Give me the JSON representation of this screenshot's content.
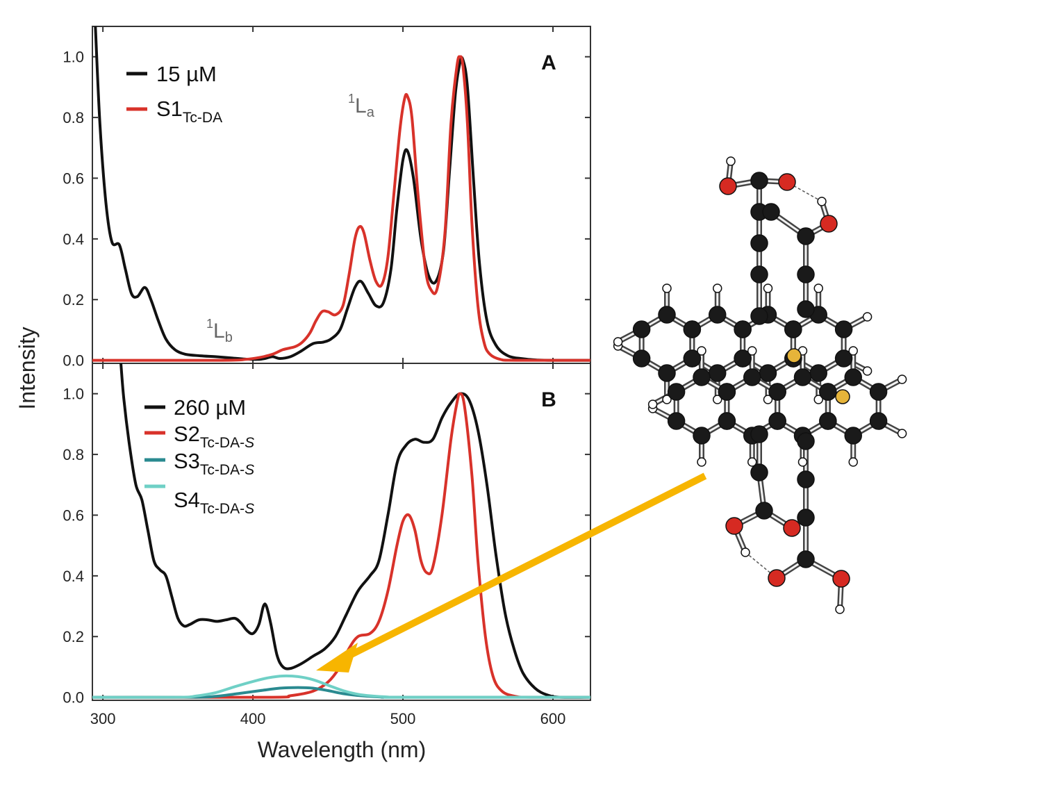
{
  "figure": {
    "ylabel": "Intensity",
    "xlabel": "Wavelength (nm)",
    "colors": {
      "black": "#111111",
      "red": "#d8322a",
      "teal_dark": "#2a8a90",
      "teal_light": "#6fd0c6",
      "arrow": "#f7b500",
      "oxygen": "#d62a22",
      "sulfur": "#e6b43a",
      "carbon": "#1a1a1a",
      "hydrogen": "#ffffff"
    }
  },
  "chart_data": [
    {
      "type": "line",
      "panel": "A",
      "xlim": [
        293,
        625
      ],
      "ylim": [
        -0.01,
        1.1
      ],
      "xticks": [
        300,
        400,
        500,
        600
      ],
      "yticks": [
        "0.0",
        "0.2",
        "0.4",
        "0.6",
        "0.8",
        "1.0"
      ],
      "annotations": [
        {
          "sup": "1",
          "main": "L",
          "sub": "b",
          "x": 383,
          "y": 0.09
        },
        {
          "sup": "1",
          "main": "L",
          "sub": "a",
          "x": 484,
          "y": 0.83
        }
      ],
      "series": [
        {
          "name": "15 µM",
          "color": "#111111",
          "points": [
            [
              295,
              1.1
            ],
            [
              298,
              0.78
            ],
            [
              302,
              0.52
            ],
            [
              306,
              0.39
            ],
            [
              311,
              0.38
            ],
            [
              315,
              0.3
            ],
            [
              319,
              0.22
            ],
            [
              323,
              0.21
            ],
            [
              328,
              0.24
            ],
            [
              332,
              0.2
            ],
            [
              337,
              0.13
            ],
            [
              342,
              0.07
            ],
            [
              348,
              0.035
            ],
            [
              355,
              0.02
            ],
            [
              365,
              0.015
            ],
            [
              375,
              0.012
            ],
            [
              385,
              0.008
            ],
            [
              395,
              0.004
            ],
            [
              403,
              0.003
            ],
            [
              408,
              0.006
            ],
            [
              413,
              0.012
            ],
            [
              418,
              0.006
            ],
            [
              425,
              0.012
            ],
            [
              432,
              0.03
            ],
            [
              440,
              0.055
            ],
            [
              447,
              0.06
            ],
            [
              452,
              0.07
            ],
            [
              458,
              0.1
            ],
            [
              463,
              0.17
            ],
            [
              468,
              0.24
            ],
            [
              472,
              0.26
            ],
            [
              477,
              0.22
            ],
            [
              482,
              0.18
            ],
            [
              487,
              0.19
            ],
            [
              492,
              0.3
            ],
            [
              496,
              0.5
            ],
            [
              500,
              0.66
            ],
            [
              503,
              0.69
            ],
            [
              507,
              0.6
            ],
            [
              512,
              0.4
            ],
            [
              517,
              0.28
            ],
            [
              522,
              0.26
            ],
            [
              527,
              0.36
            ],
            [
              531,
              0.62
            ],
            [
              535,
              0.88
            ],
            [
              538,
              0.98
            ],
            [
              540,
              0.99
            ],
            [
              543,
              0.9
            ],
            [
              547,
              0.6
            ],
            [
              551,
              0.32
            ],
            [
              556,
              0.13
            ],
            [
              562,
              0.05
            ],
            [
              570,
              0.015
            ],
            [
              580,
              0.005
            ],
            [
              590,
              0.001
            ],
            [
              600,
              0.0
            ],
            [
              625,
              0.0
            ]
          ]
        },
        {
          "name": "S1",
          "name_sub": "Tc-DA",
          "color": "#d8322a",
          "points": [
            [
              293,
              0.0
            ],
            [
              380,
              0.0
            ],
            [
              395,
              0.003
            ],
            [
              405,
              0.01
            ],
            [
              413,
              0.02
            ],
            [
              420,
              0.035
            ],
            [
              428,
              0.045
            ],
            [
              433,
              0.06
            ],
            [
              438,
              0.09
            ],
            [
              442,
              0.13
            ],
            [
              446,
              0.16
            ],
            [
              450,
              0.16
            ],
            [
              455,
              0.15
            ],
            [
              460,
              0.18
            ],
            [
              464,
              0.28
            ],
            [
              468,
              0.4
            ],
            [
              471,
              0.44
            ],
            [
              474,
              0.42
            ],
            [
              478,
              0.33
            ],
            [
              482,
              0.26
            ],
            [
              486,
              0.25
            ],
            [
              490,
              0.34
            ],
            [
              494,
              0.55
            ],
            [
              498,
              0.76
            ],
            [
              501,
              0.86
            ],
            [
              503,
              0.87
            ],
            [
              506,
              0.8
            ],
            [
              510,
              0.55
            ],
            [
              515,
              0.3
            ],
            [
              519,
              0.23
            ],
            [
              523,
              0.24
            ],
            [
              528,
              0.42
            ],
            [
              532,
              0.78
            ],
            [
              536,
              0.97
            ],
            [
              538,
              1.0
            ],
            [
              540,
              0.97
            ],
            [
              543,
              0.78
            ],
            [
              546,
              0.45
            ],
            [
              550,
              0.18
            ],
            [
              554,
              0.06
            ],
            [
              558,
              0.02
            ],
            [
              565,
              0.003
            ],
            [
              575,
              0.0
            ],
            [
              625,
              0.0
            ]
          ]
        }
      ],
      "legend": [
        "15 µM",
        "S1 Tc-DA"
      ]
    },
    {
      "type": "line",
      "panel": "B",
      "xlim": [
        293,
        625
      ],
      "ylim": [
        -0.01,
        1.1
      ],
      "xticks": [
        300,
        400,
        500,
        600
      ],
      "yticks": [
        "0.0",
        "0.2",
        "0.4",
        "0.6",
        "0.8",
        "1.0"
      ],
      "series": [
        {
          "name": "260 µM",
          "color": "#111111",
          "points": [
            [
              312,
              1.1
            ],
            [
              314,
              0.98
            ],
            [
              318,
              0.82
            ],
            [
              322,
              0.7
            ],
            [
              326,
              0.65
            ],
            [
              330,
              0.55
            ],
            [
              334,
              0.45
            ],
            [
              338,
              0.42
            ],
            [
              342,
              0.4
            ],
            [
              346,
              0.33
            ],
            [
              350,
              0.26
            ],
            [
              354,
              0.235
            ],
            [
              358,
              0.24
            ],
            [
              364,
              0.255
            ],
            [
              370,
              0.255
            ],
            [
              376,
              0.25
            ],
            [
              382,
              0.255
            ],
            [
              388,
              0.26
            ],
            [
              392,
              0.245
            ],
            [
              396,
              0.22
            ],
            [
              400,
              0.21
            ],
            [
              404,
              0.24
            ],
            [
              407,
              0.3
            ],
            [
              409,
              0.3
            ],
            [
              412,
              0.24
            ],
            [
              416,
              0.14
            ],
            [
              420,
              0.1
            ],
            [
              425,
              0.095
            ],
            [
              432,
              0.11
            ],
            [
              440,
              0.135
            ],
            [
              448,
              0.16
            ],
            [
              455,
              0.2
            ],
            [
              462,
              0.27
            ],
            [
              470,
              0.35
            ],
            [
              478,
              0.4
            ],
            [
              484,
              0.45
            ],
            [
              490,
              0.6
            ],
            [
              496,
              0.77
            ],
            [
              502,
              0.83
            ],
            [
              508,
              0.85
            ],
            [
              514,
              0.84
            ],
            [
              520,
              0.85
            ],
            [
              526,
              0.92
            ],
            [
              532,
              0.97
            ],
            [
              538,
              1.0
            ],
            [
              544,
              0.98
            ],
            [
              550,
              0.88
            ],
            [
              556,
              0.7
            ],
            [
              562,
              0.47
            ],
            [
              568,
              0.28
            ],
            [
              574,
              0.16
            ],
            [
              580,
              0.08
            ],
            [
              588,
              0.03
            ],
            [
              596,
              0.008
            ],
            [
              605,
              0.0
            ],
            [
              625,
              0.0
            ]
          ]
        },
        {
          "name": "S2",
          "name_sub": "Tc-DA-S",
          "color": "#d8322a",
          "points": [
            [
              293,
              0.0
            ],
            [
              410,
              0.0
            ],
            [
              425,
              0.005
            ],
            [
              440,
              0.02
            ],
            [
              450,
              0.05
            ],
            [
              458,
              0.1
            ],
            [
              464,
              0.16
            ],
            [
              470,
              0.2
            ],
            [
              478,
              0.21
            ],
            [
              484,
              0.25
            ],
            [
              490,
              0.35
            ],
            [
              496,
              0.5
            ],
            [
              500,
              0.58
            ],
            [
              504,
              0.6
            ],
            [
              508,
              0.55
            ],
            [
              512,
              0.45
            ],
            [
              516,
              0.41
            ],
            [
              520,
              0.43
            ],
            [
              526,
              0.6
            ],
            [
              532,
              0.85
            ],
            [
              536,
              0.97
            ],
            [
              538,
              1.0
            ],
            [
              541,
              0.96
            ],
            [
              546,
              0.73
            ],
            [
              550,
              0.45
            ],
            [
              555,
              0.2
            ],
            [
              560,
              0.07
            ],
            [
              566,
              0.02
            ],
            [
              575,
              0.003
            ],
            [
              585,
              0.0
            ],
            [
              625,
              0.0
            ]
          ]
        },
        {
          "name": "S3",
          "name_sub": "Tc-DA-S",
          "color": "#2a8a90",
          "points": [
            [
              293,
              0.0
            ],
            [
              360,
              0.0
            ],
            [
              375,
              0.003
            ],
            [
              390,
              0.012
            ],
            [
              405,
              0.022
            ],
            [
              418,
              0.03
            ],
            [
              430,
              0.032
            ],
            [
              440,
              0.03
            ],
            [
              450,
              0.022
            ],
            [
              460,
              0.012
            ],
            [
              472,
              0.005
            ],
            [
              485,
              0.001
            ],
            [
              500,
              0.0
            ],
            [
              625,
              0.0
            ]
          ]
        },
        {
          "name": "S4",
          "name_sub": "Tc-DA-S",
          "color": "#6fd0c6",
          "points": [
            [
              293,
              0.0
            ],
            [
              350,
              0.0
            ],
            [
              362,
              0.004
            ],
            [
              375,
              0.015
            ],
            [
              388,
              0.035
            ],
            [
              400,
              0.052
            ],
            [
              410,
              0.064
            ],
            [
              420,
              0.07
            ],
            [
              430,
              0.068
            ],
            [
              440,
              0.058
            ],
            [
              450,
              0.04
            ],
            [
              460,
              0.022
            ],
            [
              470,
              0.01
            ],
            [
              480,
              0.004
            ],
            [
              490,
              0.001
            ],
            [
              500,
              0.0
            ],
            [
              625,
              0.0
            ]
          ]
        }
      ],
      "legend": [
        "260 µM",
        "S2 Tc-DA-S",
        "S3 Tc-DA-S",
        "S4 Tc-DA-S"
      ]
    }
  ],
  "text": {
    "panel_a_letter": "A",
    "panel_b_letter": "B",
    "legend_a_1": "15 µM",
    "legend_a_2_main": "S1",
    "legend_a_2_sub": "Tc-DA",
    "legend_b_1": "260 µM",
    "legend_b_2_main": "S2",
    "legend_b_2_sub": "Tc-DA-",
    "legend_b_3_main": "S3",
    "legend_b_3_sub": "Tc-DA-",
    "legend_b_4_main": "S4",
    "legend_b_4_sub": "Tc-DA-",
    "legend_italic_s": "S",
    "annot_lb_sup": "1",
    "annot_lb_main": "L",
    "annot_lb_sub": "b",
    "annot_la_sup": "1",
    "annot_la_main": "L",
    "annot_la_sub": "a",
    "xticks": [
      "300",
      "400",
      "500",
      "600"
    ],
    "yticks": [
      "0.0",
      "0.2",
      "0.4",
      "0.6",
      "0.8",
      "1.0"
    ]
  }
}
